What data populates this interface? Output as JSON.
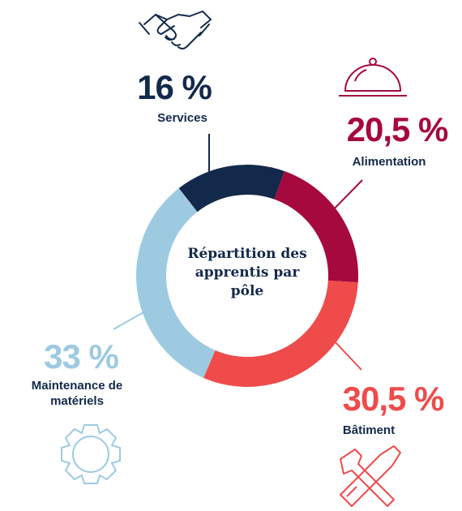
{
  "chart_data": {
    "type": "donut",
    "title": "Répartition des apprentis par pôle",
    "categories": [
      "Services",
      "Alimentation",
      "Bâtiment",
      "Maintenance de matériels"
    ],
    "values": [
      16,
      20.5,
      30.5,
      33
    ],
    "value_labels": [
      "16 %",
      "20,5 %",
      "30,5 %",
      "33 %"
    ],
    "colors": [
      "#13294b",
      "#a6093d",
      "#ef4b4b",
      "#9ecae1"
    ]
  }
}
